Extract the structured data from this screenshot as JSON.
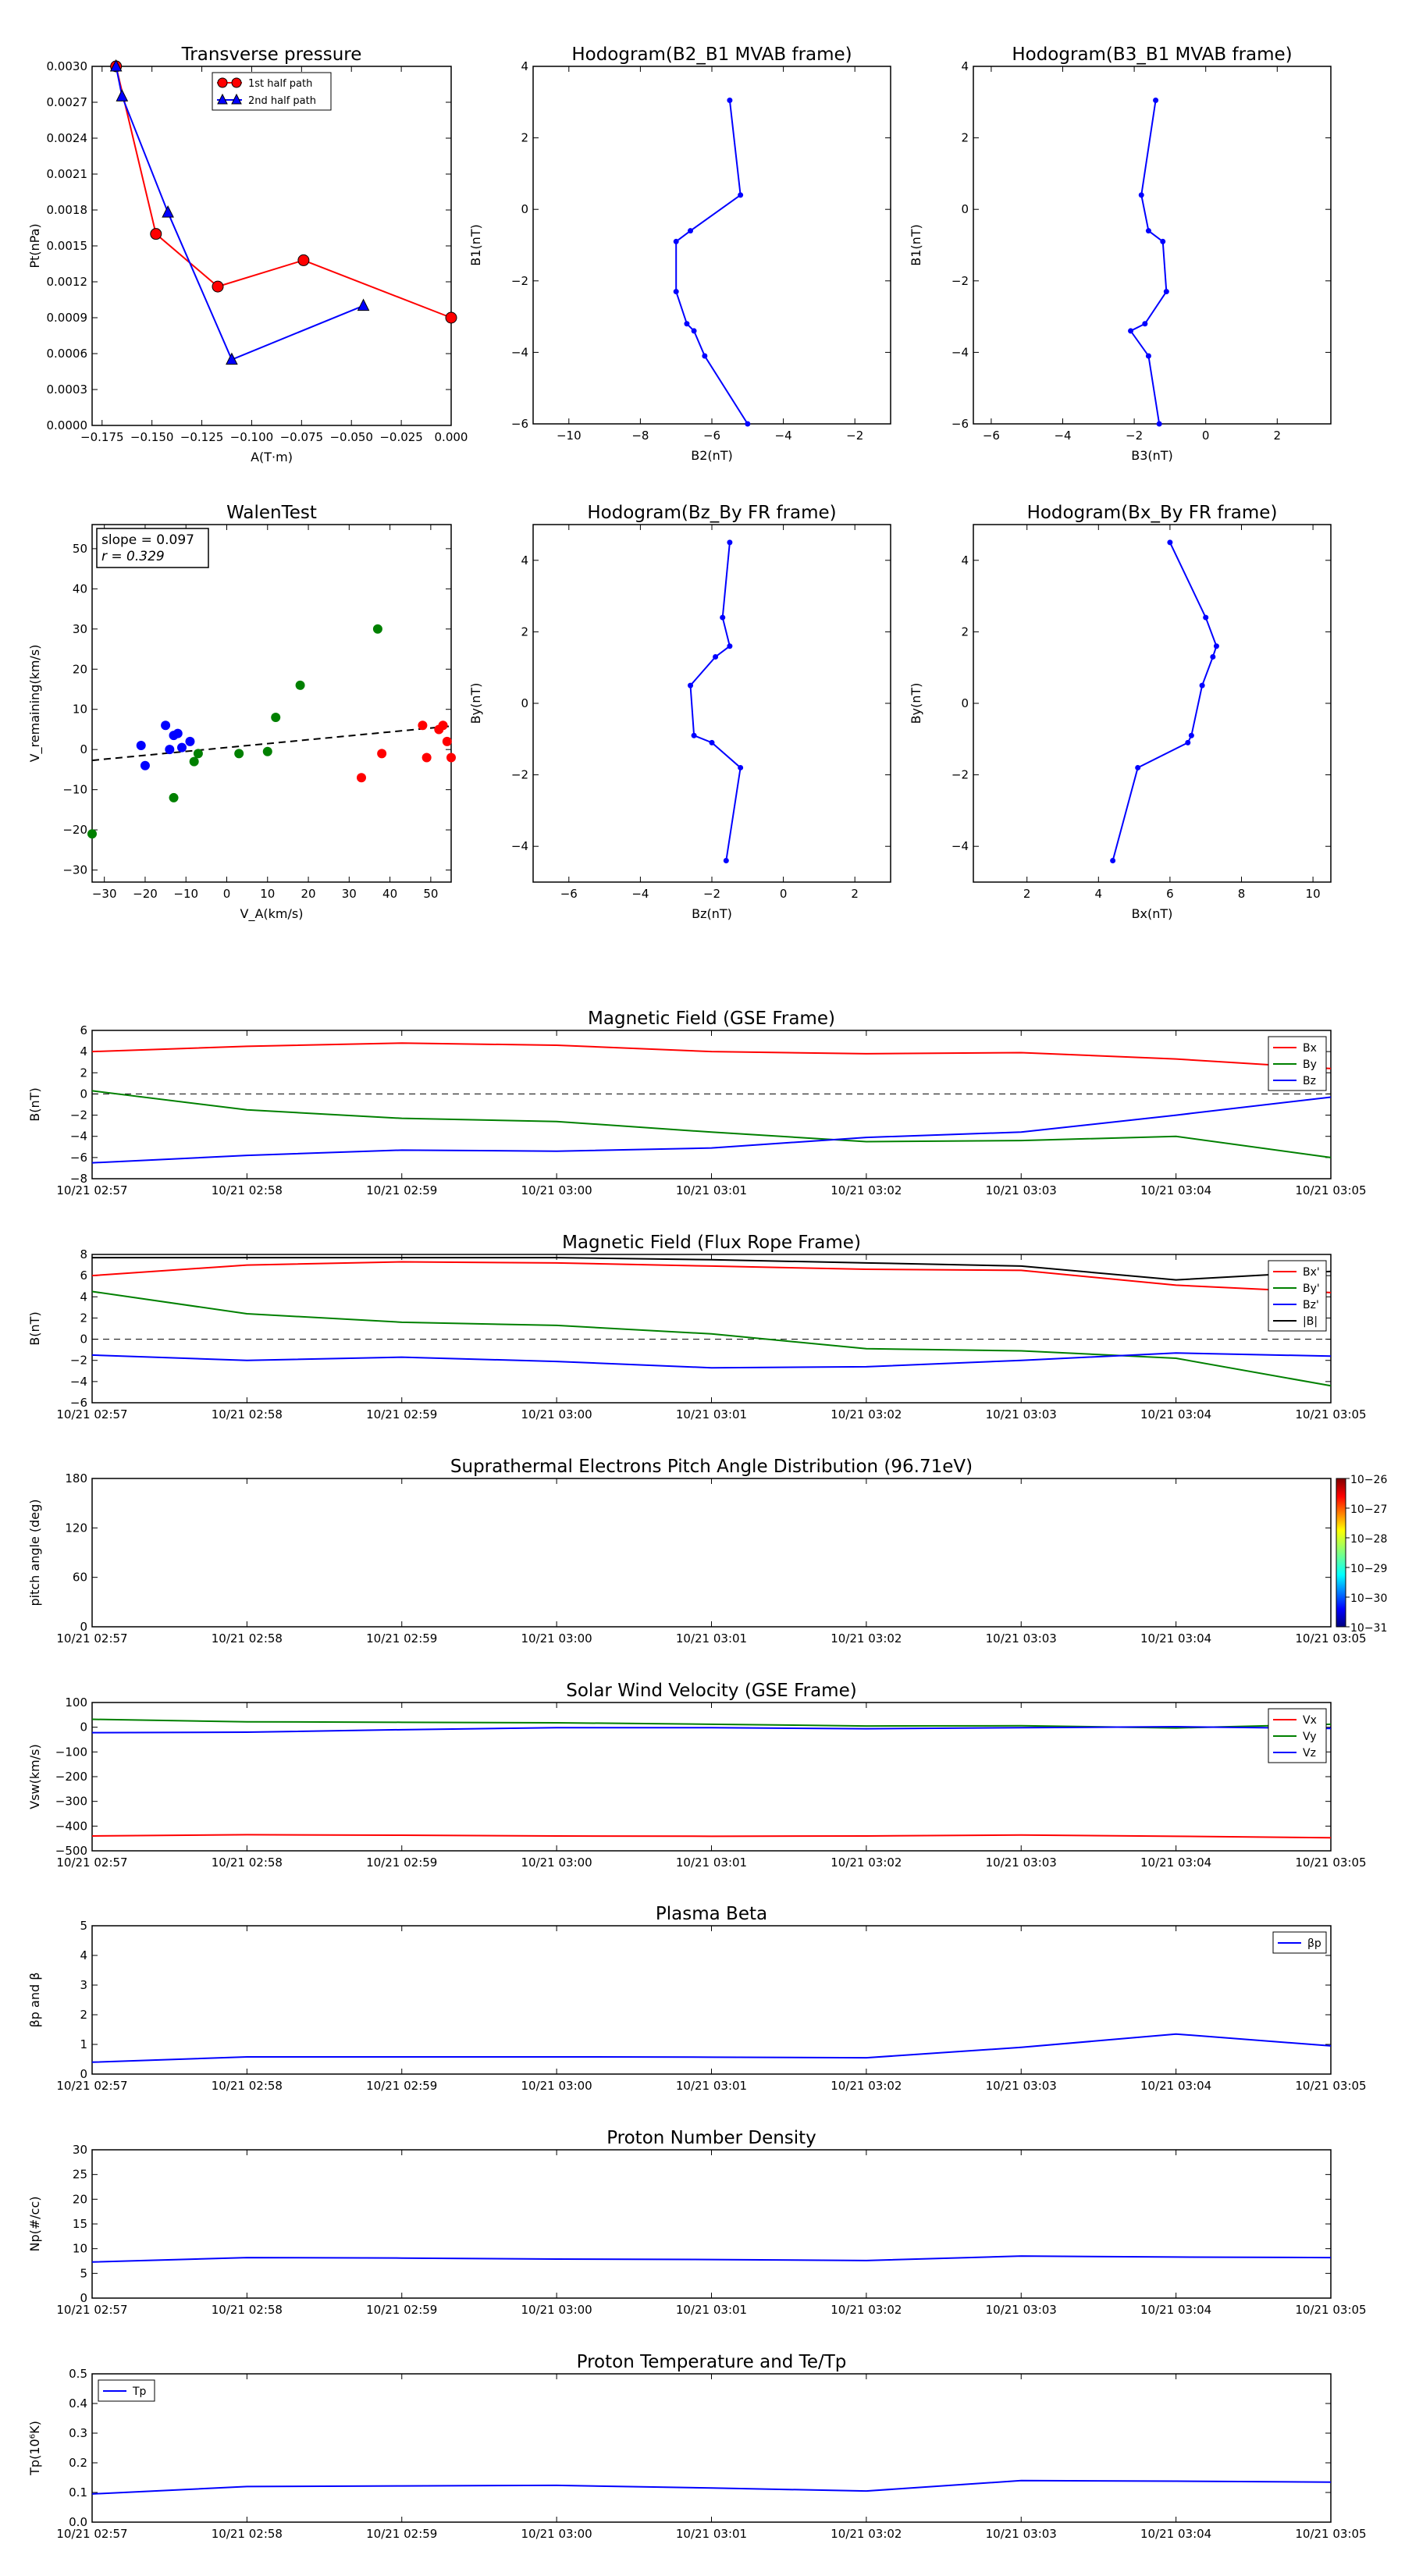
{
  "panels": {
    "transverse": {
      "title": "Transverse pressure",
      "xlabel": "A(T·m)",
      "ylabel": "Pt(nPa)",
      "xticks": [
        "−0.175",
        "−0.150",
        "−0.125",
        "−0.100",
        "−0.075",
        "−0.050",
        "−0.025",
        "0.000"
      ],
      "yticks": [
        "0.0000",
        "0.0003",
        "0.0006",
        "0.0009",
        "0.0012",
        "0.0015",
        "0.0018",
        "0.0021",
        "0.0024",
        "0.0027",
        "0.0030"
      ],
      "legend": [
        "1st half path",
        "2nd half path"
      ]
    },
    "hodo1": {
      "title": "Hodogram(B2_B1 MVAB frame)",
      "xlabel": "B2(nT)",
      "ylabel": "B1(nT)",
      "xticks": [
        "−10",
        "−8",
        "−6",
        "−4",
        "−2"
      ],
      "yticks": [
        "−6",
        "−4",
        "−2",
        "0",
        "2",
        "4"
      ]
    },
    "hodo2": {
      "title": "Hodogram(B3_B1 MVAB frame)",
      "xlabel": "B3(nT)",
      "ylabel": "B1(nT)",
      "xticks": [
        "−6",
        "−4",
        "−2",
        "0",
        "2"
      ],
      "yticks": [
        "−6",
        "−4",
        "−2",
        "0",
        "2",
        "4"
      ]
    },
    "walen": {
      "title": "WalenTest",
      "xlabel": "V_A(km/s)",
      "ylabel": "V_remaining(km/s)",
      "xticks": [
        "−30",
        "−20",
        "−10",
        "0",
        "10",
        "20",
        "30",
        "40",
        "50"
      ],
      "yticks": [
        "−30",
        "−20",
        "−10",
        "0",
        "10",
        "20",
        "30",
        "40",
        "50"
      ],
      "slope_text": "slope = 0.097",
      "r_text": "r = 0.329"
    },
    "hodo3": {
      "title": "Hodogram(Bz_By FR frame)",
      "xlabel": "Bz(nT)",
      "ylabel": "By(nT)",
      "xticks": [
        "−6",
        "−4",
        "−2",
        "0",
        "2"
      ],
      "yticks": [
        "−4",
        "−2",
        "0",
        "2",
        "4"
      ]
    },
    "hodo4": {
      "title": "Hodogram(Bx_By FR frame)",
      "xlabel": "Bx(nT)",
      "ylabel": "By(nT)",
      "xticks": [
        "2",
        "4",
        "6",
        "8",
        "10"
      ],
      "yticks": [
        "−4",
        "−2",
        "0",
        "2",
        "4"
      ]
    },
    "ts_xticks": [
      "10/21 02:57",
      "10/21 02:58",
      "10/21 02:59",
      "10/21 03:00",
      "10/21 03:01",
      "10/21 03:02",
      "10/21 03:03",
      "10/21 03:04",
      "10/21 03:05"
    ],
    "magGSE": {
      "title": "Magnetic Field (GSE Frame)",
      "ylabel": "B(nT)",
      "yticks": [
        "−8",
        "−6",
        "−4",
        "−2",
        "0",
        "2",
        "4",
        "6"
      ],
      "legend": [
        "Bx",
        "By",
        "Bz"
      ]
    },
    "magFR": {
      "title": "Magnetic Field (Flux Rope Frame)",
      "ylabel": "B(nT)",
      "yticks": [
        "−6",
        "−4",
        "−2",
        "0",
        "2",
        "4",
        "6",
        "8"
      ],
      "legend": [
        "Bx'",
        "By'",
        "Bz'",
        "|B|"
      ]
    },
    "pad": {
      "title": "Suprathermal Electrons Pitch Angle Distribution (96.71eV)",
      "ylabel": "pitch angle (deg)",
      "yticks": [
        "0",
        "60",
        "120",
        "180"
      ],
      "cbar_ticks": [
        "10−26",
        "10−27",
        "10−28",
        "10−29",
        "10−30",
        "10−31"
      ]
    },
    "vsw": {
      "title": "Solar Wind Velocity (GSE Frame)",
      "ylabel": "Vsw(km/s)",
      "yticks": [
        "−500",
        "−400",
        "−300",
        "−200",
        "−100",
        "0",
        "100"
      ],
      "legend": [
        "Vx",
        "Vy",
        "Vz"
      ]
    },
    "beta": {
      "title": "Plasma Beta",
      "ylabel": "βp and β",
      "yticks": [
        "0",
        "1",
        "2",
        "3",
        "4",
        "5"
      ],
      "legend": [
        "βp"
      ]
    },
    "np": {
      "title": "Proton Number Density",
      "ylabel": "Np(#/cc)",
      "yticks": [
        "0",
        "5",
        "10",
        "15",
        "20",
        "25",
        "30"
      ]
    },
    "tp": {
      "title": "Proton Temperature and Te/Tp",
      "ylabel": "Tp(10⁶K)",
      "yticks": [
        "0.0",
        "0.1",
        "0.2",
        "0.3",
        "0.4",
        "0.5"
      ],
      "legend": [
        "Tp"
      ]
    }
  },
  "colors": {
    "red": "#ff0000",
    "green": "#008000",
    "blue": "#0000ff",
    "black": "#000000"
  },
  "chart_data": [
    {
      "type": "line",
      "title": "Transverse pressure",
      "xlabel": "A(T·m)",
      "ylabel": "Pt(nPa)",
      "xlim": [
        -0.18,
        0.0
      ],
      "ylim": [
        0.0,
        0.003
      ],
      "series": [
        {
          "name": "1st half path",
          "color": "#ff0000",
          "marker": "circle",
          "x": [
            -0.168,
            -0.148,
            -0.117,
            -0.074,
            0.0
          ],
          "y": [
            0.003,
            0.0016,
            0.00116,
            0.00138,
            0.0009
          ]
        },
        {
          "name": "2nd half path",
          "color": "#0000ff",
          "marker": "triangle",
          "x": [
            -0.168,
            -0.165,
            -0.142,
            -0.11,
            -0.044
          ],
          "y": [
            0.003,
            0.00275,
            0.00178,
            0.00055,
            0.001
          ]
        }
      ]
    },
    {
      "type": "line",
      "title": "Hodogram(B2_B1 MVAB frame)",
      "xlabel": "B2(nT)",
      "ylabel": "B1(nT)",
      "xlim": [
        -11,
        -1
      ],
      "ylim": [
        -6,
        4
      ],
      "series": [
        {
          "color": "#0000ff",
          "x": [
            -5.5,
            -5.2,
            -6.6,
            -7,
            -7,
            -6.7,
            -6.5,
            -6.2,
            -5
          ],
          "y": [
            3.05,
            0.4,
            -0.6,
            -0.9,
            -2.3,
            -3.2,
            -3.4,
            -4.1,
            -6
          ]
        }
      ]
    },
    {
      "type": "line",
      "title": "Hodogram(B3_B1 MVAB frame)",
      "xlabel": "B3(nT)",
      "ylabel": "B1(nT)",
      "xlim": [
        -6.5,
        3.5
      ],
      "ylim": [
        -6,
        4
      ],
      "series": [
        {
          "color": "#0000ff",
          "x": [
            -1.4,
            -1.8,
            -1.6,
            -1.2,
            -1.1,
            -1.7,
            -2.1,
            -1.6,
            -1.3
          ],
          "y": [
            3.05,
            0.4,
            -0.6,
            -0.9,
            -2.3,
            -3.2,
            -3.4,
            -4.1,
            -6
          ]
        }
      ]
    },
    {
      "type": "scatter",
      "title": "WalenTest",
      "xlabel": "V_A(km/s)",
      "ylabel": "V_remaining(km/s)",
      "xlim": [
        -33,
        55
      ],
      "ylim": [
        -33,
        56
      ],
      "fit": {
        "slope": 0.097,
        "r": 0.329,
        "intercept": 0.5
      },
      "series": [
        {
          "color": "#0000ff",
          "x": [
            -21,
            -20,
            -15,
            -14,
            -13,
            -12,
            -11,
            -9
          ],
          "y": [
            1,
            -4,
            6,
            0,
            3.5,
            4,
            0.5,
            2
          ]
        },
        {
          "color": "#008000",
          "x": [
            -33,
            -13,
            -8,
            -7,
            3,
            10,
            12,
            18,
            37
          ],
          "y": [
            -21,
            -12,
            -3,
            -1,
            -1,
            -0.5,
            8,
            16,
            30
          ]
        },
        {
          "color": "#ff0000",
          "x": [
            33,
            38,
            48,
            49,
            52,
            53,
            54,
            55
          ],
          "y": [
            -7,
            -1,
            6,
            -2,
            5,
            6,
            2,
            -2
          ]
        }
      ]
    },
    {
      "type": "line",
      "title": "Hodogram(Bz_By FR frame)",
      "xlabel": "Bz(nT)",
      "ylabel": "By(nT)",
      "xlim": [
        -7,
        3
      ],
      "ylim": [
        -5,
        5
      ],
      "series": [
        {
          "color": "#0000ff",
          "x": [
            -1.5,
            -1.7,
            -1.5,
            -1.9,
            -2.6,
            -2.5,
            -2.0,
            -1.2,
            -1.6
          ],
          "y": [
            4.5,
            2.4,
            1.6,
            1.3,
            0.5,
            -0.9,
            -1.1,
            -1.8,
            -4.4
          ]
        }
      ]
    },
    {
      "type": "line",
      "title": "Hodogram(Bx_By FR frame)",
      "xlabel": "Bx(nT)",
      "ylabel": "By(nT)",
      "xlim": [
        0.5,
        10.5
      ],
      "ylim": [
        -5,
        5
      ],
      "series": [
        {
          "color": "#0000ff",
          "x": [
            6,
            7,
            7.3,
            7.2,
            6.9,
            6.6,
            6.5,
            5.1,
            4.4
          ],
          "y": [
            4.5,
            2.4,
            1.6,
            1.3,
            0.5,
            -0.9,
            -1.1,
            -1.8,
            -4.4
          ]
        }
      ]
    },
    {
      "type": "line",
      "title": "Magnetic Field (GSE Frame)",
      "ylabel": "B(nT)",
      "ylim": [
        -8,
        6
      ],
      "x": [
        0,
        1,
        2,
        3,
        4,
        5,
        6,
        7,
        8
      ],
      "series": [
        {
          "name": "Bx",
          "color": "#ff0000",
          "values": [
            4,
            4.5,
            4.8,
            4.6,
            4,
            3.8,
            3.9,
            3.3,
            2.4
          ]
        },
        {
          "name": "By",
          "color": "#008000",
          "values": [
            0.3,
            -1.5,
            -2.3,
            -2.6,
            -3.6,
            -4.5,
            -4.4,
            -4,
            -6
          ]
        },
        {
          "name": "Bz",
          "color": "#0000ff",
          "values": [
            -6.5,
            -5.8,
            -5.3,
            -5.4,
            -5.1,
            -4.1,
            -3.6,
            -2,
            -0.3
          ]
        }
      ]
    },
    {
      "type": "line",
      "title": "Magnetic Field (Flux Rope Frame)",
      "ylabel": "B(nT)",
      "ylim": [
        -6,
        8
      ],
      "x": [
        0,
        1,
        2,
        3,
        4,
        5,
        6,
        7,
        8
      ],
      "series": [
        {
          "name": "Bx'",
          "color": "#ff0000",
          "values": [
            6,
            7,
            7.3,
            7.2,
            6.9,
            6.6,
            6.5,
            5.1,
            4.4
          ]
        },
        {
          "name": "By'",
          "color": "#008000",
          "values": [
            4.5,
            2.4,
            1.6,
            1.3,
            0.5,
            -0.9,
            -1.1,
            -1.8,
            -4.4
          ]
        },
        {
          "name": "Bz'",
          "color": "#0000ff",
          "values": [
            -1.5,
            -2,
            -1.7,
            -2.1,
            -2.7,
            -2.6,
            -2,
            -1.3,
            -1.6
          ]
        },
        {
          "name": "|B|",
          "color": "#000000",
          "values": [
            7.7,
            7.7,
            7.7,
            7.7,
            7.5,
            7.2,
            6.9,
            5.6,
            6.4
          ]
        }
      ]
    },
    {
      "type": "heatmap",
      "title": "Suprathermal Electrons Pitch Angle Distribution (96.71eV)",
      "ylabel": "pitch angle (deg)",
      "ylim": [
        0,
        180
      ],
      "values": []
    },
    {
      "type": "line",
      "title": "Solar Wind Velocity (GSE Frame)",
      "ylabel": "Vsw(km/s)",
      "ylim": [
        -500,
        100
      ],
      "x": [
        0,
        1,
        2,
        3,
        4,
        5,
        6,
        7,
        8
      ],
      "series": [
        {
          "name": "Vx",
          "color": "#ff0000",
          "values": [
            -440,
            -435,
            -437,
            -440,
            -441,
            -440,
            -436,
            -441,
            -447
          ]
        },
        {
          "name": "Vy",
          "color": "#008000",
          "values": [
            32,
            22,
            20,
            18,
            12,
            5,
            6,
            -3,
            12
          ]
        },
        {
          "name": "Vz",
          "color": "#0000ff",
          "values": [
            -22,
            -20,
            -10,
            -2,
            -2,
            -6,
            -2,
            2,
            -5
          ]
        }
      ]
    },
    {
      "type": "line",
      "title": "Plasma Beta",
      "ylabel": "βp and β",
      "ylim": [
        0,
        5
      ],
      "x": [
        0,
        1,
        2,
        3,
        4,
        5,
        6,
        7,
        8
      ],
      "series": [
        {
          "name": "βp",
          "color": "#0000ff",
          "values": [
            0.4,
            0.58,
            0.58,
            0.58,
            0.57,
            0.55,
            0.9,
            1.35,
            0.95
          ]
        }
      ]
    },
    {
      "type": "line",
      "title": "Proton Number Density",
      "ylabel": "Np(#/cc)",
      "ylim": [
        0,
        30
      ],
      "x": [
        0,
        1,
        2,
        3,
        4,
        5,
        6,
        7,
        8
      ],
      "series": [
        {
          "color": "#0000ff",
          "values": [
            7.3,
            8.2,
            8.1,
            7.9,
            7.8,
            7.6,
            8.5,
            8.3,
            8.2
          ]
        }
      ]
    },
    {
      "type": "line",
      "title": "Proton Temperature and Te/Tp",
      "ylabel": "Tp(10⁶K)",
      "ylim": [
        0,
        0.5
      ],
      "x": [
        0,
        1,
        2,
        3,
        4,
        5,
        6,
        7,
        8
      ],
      "series": [
        {
          "name": "Tp",
          "color": "#0000ff",
          "values": [
            0.095,
            0.12,
            0.122,
            0.124,
            0.115,
            0.105,
            0.14,
            0.138,
            0.135
          ]
        }
      ]
    }
  ]
}
